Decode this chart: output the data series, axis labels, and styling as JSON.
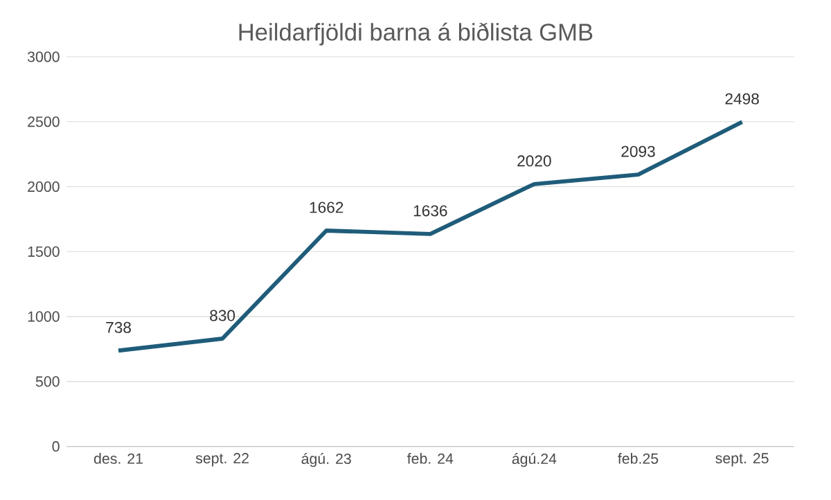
{
  "chart_data": {
    "type": "line",
    "title": "Heildarfjöldi barna á biðlista GMB",
    "categories": [
      "des. 21",
      "sept. 22",
      "ágú. 23",
      "feb. 24",
      "ágú.24",
      "feb.25",
      "sept. 25"
    ],
    "values": [
      738,
      830,
      1662,
      1636,
      2020,
      2093,
      2498
    ],
    "color": "#1f5c7a",
    "ylim": [
      0,
      3000
    ],
    "yticks": [
      0,
      500,
      1000,
      1500,
      2000,
      2500,
      3000
    ],
    "grid": "y",
    "data_labels": true,
    "marker": "none",
    "line_style": "solid"
  }
}
